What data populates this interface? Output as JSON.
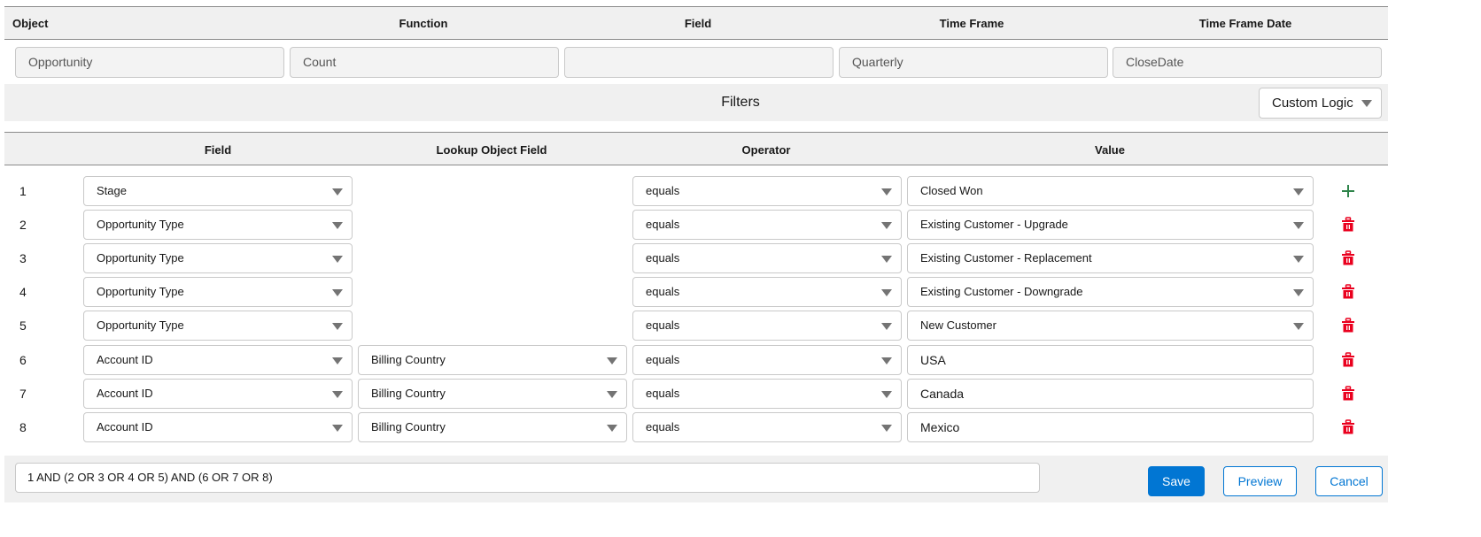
{
  "summary": {
    "headers": [
      "Object",
      "Function",
      "Field",
      "Time Frame",
      "Time Frame Date"
    ],
    "values": [
      "Opportunity",
      "Count",
      "",
      "Quarterly",
      "CloseDate"
    ]
  },
  "filters": {
    "title": "Filters",
    "logic_mode": "Custom Logic",
    "columns": [
      "Field",
      "Lookup Object Field",
      "Operator",
      "Value"
    ],
    "rows": [
      {
        "num": "1",
        "field": "Stage",
        "lookup": null,
        "operator": "equals",
        "value": "Closed Won",
        "value_type": "select",
        "action": "add"
      },
      {
        "num": "2",
        "field": "Opportunity Type",
        "lookup": null,
        "operator": "equals",
        "value": "Existing Customer - Upgrade",
        "value_type": "select",
        "action": "delete"
      },
      {
        "num": "3",
        "field": "Opportunity Type",
        "lookup": null,
        "operator": "equals",
        "value": "Existing Customer - Replacement",
        "value_type": "select",
        "action": "delete"
      },
      {
        "num": "4",
        "field": "Opportunity Type",
        "lookup": null,
        "operator": "equals",
        "value": "Existing Customer - Downgrade",
        "value_type": "select",
        "action": "delete"
      },
      {
        "num": "5",
        "field": "Opportunity Type",
        "lookup": null,
        "operator": "equals",
        "value": "New Customer",
        "value_type": "select",
        "action": "delete"
      },
      {
        "num": "6",
        "field": "Account ID",
        "lookup": "Billing Country",
        "operator": "equals",
        "value": "USA",
        "value_type": "text",
        "action": "delete"
      },
      {
        "num": "7",
        "field": "Account ID",
        "lookup": "Billing Country",
        "operator": "equals",
        "value": "Canada",
        "value_type": "text",
        "action": "delete"
      },
      {
        "num": "8",
        "field": "Account ID",
        "lookup": "Billing Country",
        "operator": "equals",
        "value": "Mexico",
        "value_type": "text",
        "action": "delete"
      }
    ]
  },
  "footer": {
    "logic_expression": "1 AND (2 OR 3 OR 4 OR 5) AND (6 OR 7 OR 8)",
    "save_label": "Save",
    "preview_label": "Preview",
    "cancel_label": "Cancel"
  },
  "colors": {
    "accent": "#0176d3",
    "add": "#2e844a",
    "delete": "#ea001e"
  }
}
